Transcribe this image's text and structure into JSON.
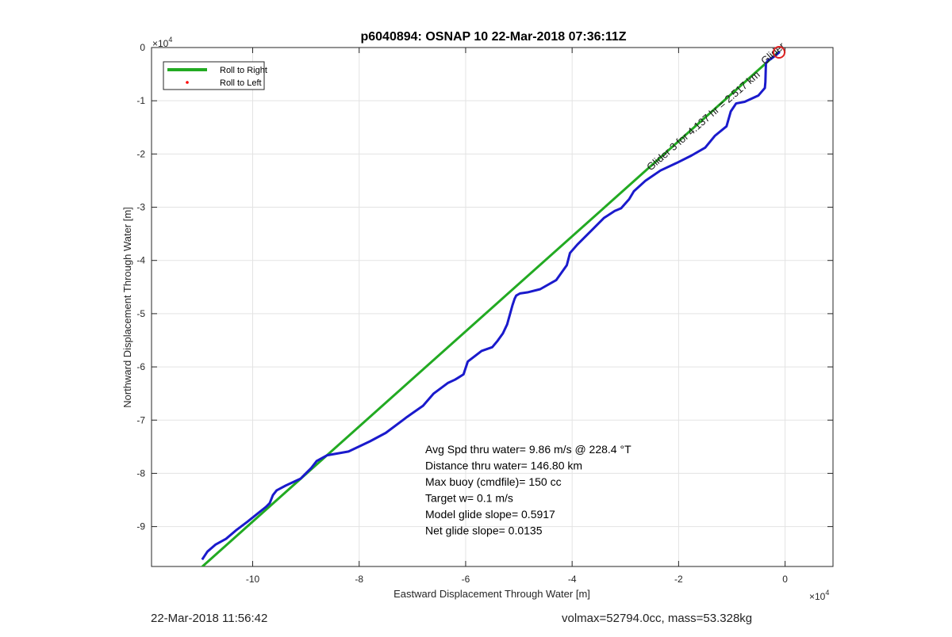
{
  "chart_data": {
    "type": "line",
    "title": "p6040894: OSNAP 10 22-Mar-2018 07:36:11Z",
    "xlabel": "Eastward Displacement Through Water [m]",
    "ylabel": "Northward Displacement Through Water [m]",
    "x_exponent": "×10",
    "x_exponent_power": "4",
    "y_exponent": "×10",
    "y_exponent_power": "4",
    "xlim": [
      -119000,
      9000
    ],
    "ylim": [
      -97500,
      0
    ],
    "xticks": [
      -100000,
      -80000,
      -60000,
      -40000,
      -20000,
      0
    ],
    "xtick_labels": [
      "-10",
      "-8",
      "-6",
      "-4",
      "-2",
      "0"
    ],
    "yticks": [
      0,
      -10000,
      -20000,
      -30000,
      -40000,
      -50000,
      -60000,
      -70000,
      -80000,
      -90000
    ],
    "ytick_labels": [
      "0",
      "-1",
      "-2",
      "-3",
      "-4",
      "-5",
      "-6",
      "-7",
      "-8",
      "-9"
    ],
    "grid": true,
    "legend_position": "top-left",
    "series": [
      {
        "name": "Roll to Right",
        "color": "#22aa22",
        "x": [
          -110000,
          -1200
        ],
        "y": [
          -98000,
          -800
        ]
      },
      {
        "name": "Roll to Left",
        "color": "#ff0000",
        "x": [],
        "y": []
      },
      {
        "name": "",
        "color": "#1a1acc",
        "x": [
          -1000,
          -1800,
          -2600,
          -3200,
          -3600,
          -3700,
          -3800,
          -5000,
          -7600,
          -9200,
          -10200,
          -11000,
          -13200,
          -15000,
          -17600,
          -20400,
          -23400,
          -26200,
          -28400,
          -29300,
          -30800,
          -32000,
          -34000,
          -36000,
          -39000,
          -40400,
          -41000,
          -43000,
          -46000,
          -48400,
          -49800,
          -50500,
          -50800,
          -51200,
          -52200,
          -53000,
          -54000,
          -55000,
          -57000,
          -59600,
          -60400,
          -61500,
          -62000,
          -63300,
          -66000,
          -68000,
          -70000,
          -71000,
          -75000,
          -78000,
          -82000,
          -86000,
          -88000,
          -89000,
          -91000,
          -93800,
          -95500,
          -96200,
          -96800,
          -97500,
          -99000,
          -101000,
          -103000,
          -105000,
          -107000,
          -108500,
          -109500
        ],
        "y": [
          -800,
          -1500,
          -2100,
          -2400,
          -3000,
          -6500,
          -7600,
          -9000,
          -10200,
          -10500,
          -12000,
          -14800,
          -16600,
          -18800,
          -20300,
          -21700,
          -23100,
          -25000,
          -27000,
          -28500,
          -30200,
          -30700,
          -32000,
          -34000,
          -37000,
          -38600,
          -40900,
          -43700,
          -45400,
          -46000,
          -46200,
          -46600,
          -47200,
          -48400,
          -52000,
          -53700,
          -55100,
          -56300,
          -57000,
          -59000,
          -61400,
          -62100,
          -62400,
          -63000,
          -65000,
          -67300,
          -68700,
          -69400,
          -72400,
          -74000,
          -75900,
          -76600,
          -77700,
          -79000,
          -81000,
          -82300,
          -83200,
          -84100,
          -85600,
          -86300,
          -87500,
          -89100,
          -90600,
          -92300,
          -93400,
          -94700,
          -96200
        ]
      }
    ],
    "annotation_rotated": "Glider 3 for 4.137 hr = 2.517 km",
    "annotation_cluster": "Glider",
    "stats": [
      "Avg Spd thru water=  9.86 m/s @ 228.4 °T",
      "Distance thru water= 146.80 km",
      "Max buoy (cmdfile)= 150 cc",
      "Target w= 0.1 m/s",
      "Model glide slope= 0.5917",
      "Net glide slope= 0.0135"
    ]
  },
  "footer": {
    "timestamp": "22-Mar-2018 11:56:42",
    "glider_info": "volmax=52794.0cc, mass=53.328kg"
  }
}
